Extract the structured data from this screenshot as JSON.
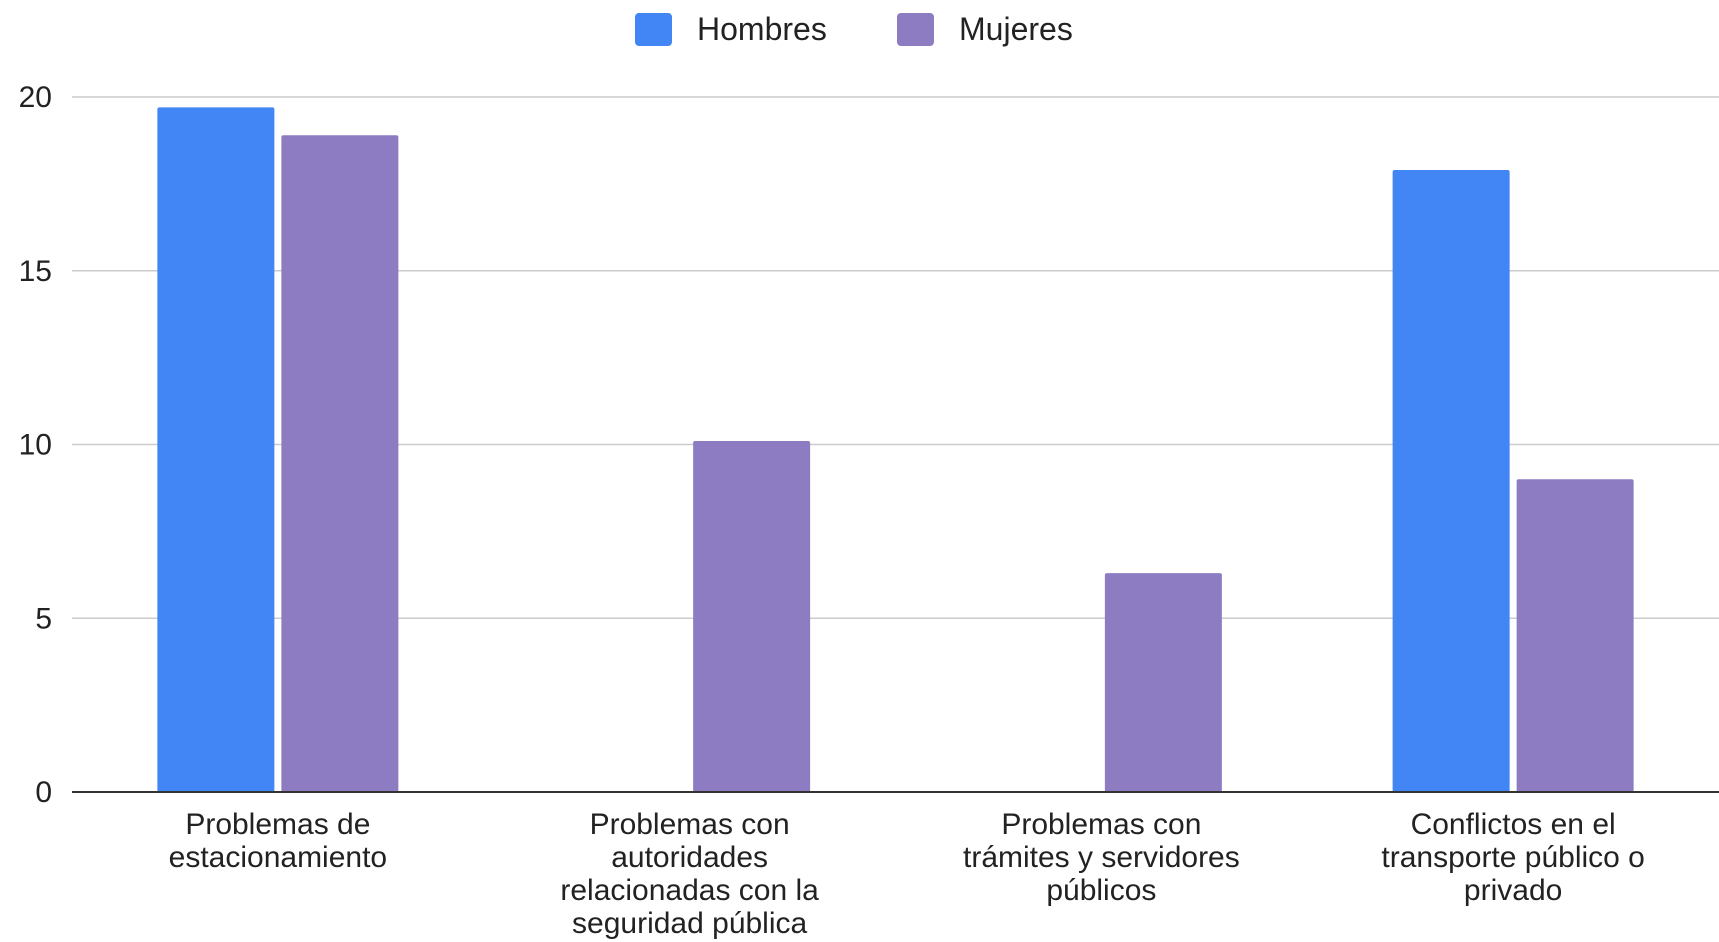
{
  "chart_data": {
    "type": "bar",
    "title": "",
    "xlabel": "",
    "ylabel": "",
    "categories": [
      [
        "Problemas de",
        "estacionamiento"
      ],
      [
        "Problemas con",
        "autoridades",
        "relacionadas con la",
        "seguridad pública"
      ],
      [
        "Problemas con",
        "trámites y servidores",
        "públicos"
      ],
      [
        "Conflictos en el",
        "transporte público o",
        "privado"
      ]
    ],
    "series": [
      {
        "name": "Hombres",
        "color": "#4285f4",
        "values": [
          19.7,
          0,
          0,
          17.9
        ]
      },
      {
        "name": "Mujeres",
        "color": "#8e7cc3",
        "values": [
          18.9,
          10.1,
          6.3,
          9.0
        ]
      }
    ],
    "ylim": [
      0,
      20
    ],
    "yticks": [
      "0",
      "5",
      "10",
      "15",
      "20"
    ],
    "grid": true,
    "legend": "top-center"
  }
}
